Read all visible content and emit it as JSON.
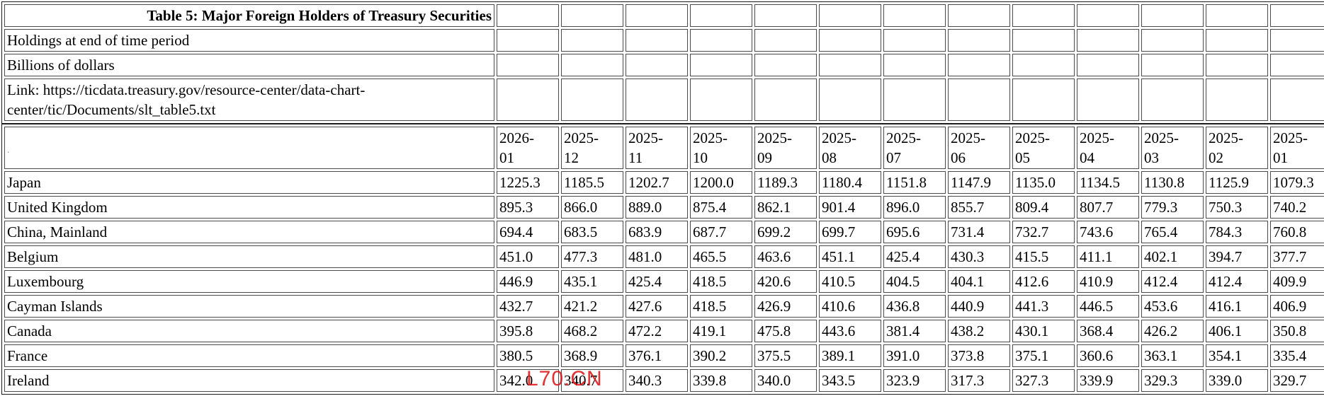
{
  "page": {
    "title": "Table 5: Major Foreign Holders of Treasury Securities",
    "subtitle_rows": [
      "Holdings at end of time period",
      "Billions of dollars",
      "Link: https://ticdata.treasury.gov/resource-center/data-chart-center/tic/Documents/slt_table5.txt"
    ],
    "corner_placeholder": ".",
    "watermark": "L70.CN",
    "colors": {
      "text": "#000000",
      "background": "#ffffff",
      "outer_border": "#1c1c1c",
      "cell_border": "#4a4a4a",
      "watermark_red": "#e11414"
    }
  },
  "chart_data": {
    "type": "table",
    "title": "Table 5: Major Foreign Holders of Treasury Securities",
    "note": "Holdings at end of time period",
    "units": "Billions of dollars",
    "source_link": "https://ticdata.treasury.gov/resource-center/data-chart-center/tic/Documents/slt_table5.txt",
    "columns": [
      "2026-01",
      "2025-12",
      "2025-11",
      "2025-10",
      "2025-09",
      "2025-08",
      "2025-07",
      "2025-06",
      "2025-05",
      "2025-04",
      "2025-03",
      "2025-02",
      "2025-01"
    ],
    "rows": [
      {
        "label": "Japan",
        "values": [
          "1225.3",
          "1185.5",
          "1202.7",
          "1200.0",
          "1189.3",
          "1180.4",
          "1151.8",
          "1147.9",
          "1135.0",
          "1134.5",
          "1130.8",
          "1125.9",
          "1079.3"
        ]
      },
      {
        "label": "United Kingdom",
        "values": [
          "895.3",
          "866.0",
          "889.0",
          "875.4",
          "862.1",
          "901.4",
          "896.0",
          "855.7",
          "809.4",
          "807.7",
          "779.3",
          "750.3",
          "740.2"
        ]
      },
      {
        "label": "China, Mainland",
        "values": [
          "694.4",
          "683.5",
          "683.9",
          "687.7",
          "699.2",
          "699.7",
          "695.6",
          "731.4",
          "732.7",
          "743.6",
          "765.4",
          "784.3",
          "760.8"
        ]
      },
      {
        "label": "Belgium",
        "values": [
          "451.0",
          "477.3",
          "481.0",
          "465.5",
          "463.6",
          "451.1",
          "425.4",
          "430.3",
          "415.5",
          "411.1",
          "402.1",
          "394.7",
          "377.7"
        ]
      },
      {
        "label": "Luxembourg",
        "values": [
          "446.9",
          "435.1",
          "425.4",
          "418.5",
          "420.6",
          "410.5",
          "404.5",
          "404.1",
          "412.6",
          "410.9",
          "412.4",
          "412.4",
          "409.9"
        ]
      },
      {
        "label": "Cayman Islands",
        "values": [
          "432.7",
          "421.2",
          "427.6",
          "418.5",
          "426.9",
          "410.6",
          "436.8",
          "440.9",
          "441.3",
          "446.5",
          "453.6",
          "416.1",
          "406.9"
        ]
      },
      {
        "label": "Canada",
        "values": [
          "395.8",
          "468.2",
          "472.2",
          "419.1",
          "475.8",
          "443.6",
          "381.4",
          "438.2",
          "430.1",
          "368.4",
          "426.2",
          "406.1",
          "350.8"
        ]
      },
      {
        "label": "France",
        "values": [
          "380.5",
          "368.9",
          "376.1",
          "390.2",
          "375.5",
          "389.1",
          "391.0",
          "373.8",
          "375.1",
          "360.6",
          "363.1",
          "354.1",
          "335.4"
        ]
      },
      {
        "label": "Ireland",
        "values": [
          "342.0",
          "340.7",
          "340.3",
          "339.8",
          "340.0",
          "343.5",
          "323.9",
          "317.3",
          "327.3",
          "339.9",
          "329.3",
          "339.0",
          "329.7"
        ]
      }
    ]
  }
}
